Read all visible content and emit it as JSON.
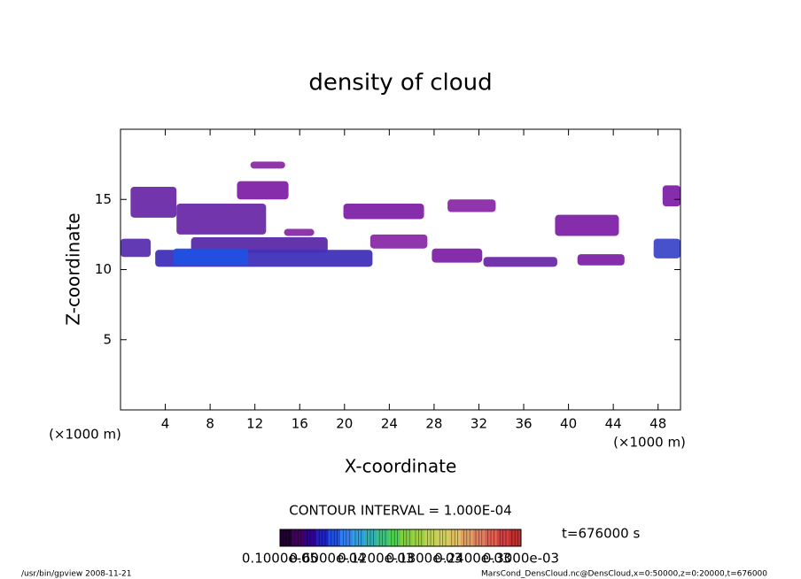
{
  "chart_data": {
    "type": "contour",
    "title": "density of cloud",
    "x_label": "X-coordinate",
    "y_label": "Z-coordinate",
    "x_unit": "(×1000 m)",
    "y_unit": "(×1000 m)",
    "xlim": [
      0,
      50
    ],
    "xticks": [
      4,
      8,
      12,
      16,
      20,
      24,
      28,
      32,
      36,
      40,
      44,
      48
    ],
    "ylim": [
      0,
      20
    ],
    "yticks": [
      5,
      10,
      15
    ],
    "contour_interval": "CONTOUR INTERVAL = 1.000E-04",
    "time_label": "t=676000 s",
    "footer_left": "/usr/bin/gpview   2008-11-21",
    "footer_right": "MarsCond_DensCloud.nc@DensCloud,x=0:50000,z=0:20000,t=676000",
    "colorbar": {
      "colors": [
        "#200030",
        "#400060",
        "#300090",
        "#2020c0",
        "#2050e0",
        "#3080f0",
        "#30a0e0",
        "#30b0b0",
        "#40c080",
        "#50d050",
        "#80d040",
        "#a0d040",
        "#c0d050",
        "#d0d060",
        "#e0c060",
        "#e0a060",
        "#e08060",
        "#e06050",
        "#d04040",
        "#c03030"
      ],
      "ticks": [
        {
          "value": 1e-06,
          "label": "0.1000e-05"
        },
        {
          "value": 6e-05,
          "label": "0.6000e-04"
        },
        {
          "value": 0.00012,
          "label": "0.1200e-03"
        },
        {
          "value": 0.00018,
          "label": "0.1800e-03"
        },
        {
          "value": 0.00024,
          "label": "0.2400e-03"
        },
        {
          "value": 0.0003,
          "label": "0.3000e-03"
        }
      ],
      "lim": [
        1e-06,
        0.0003
      ]
    },
    "patches": [
      {
        "x": [
          11.6,
          14.7
        ],
        "z": [
          17.2,
          17.7
        ],
        "value": 2e-05,
        "color": "#8a2aa8"
      },
      {
        "x": [
          10.4,
          15.0
        ],
        "z": [
          15.0,
          16.3
        ],
        "value": 2e-05,
        "color": "#7e22a6"
      },
      {
        "x": [
          0.9,
          5.0
        ],
        "z": [
          13.7,
          15.9
        ],
        "value": 3e-05,
        "color": "#6a2aa6"
      },
      {
        "x": [
          5.0,
          13.0
        ],
        "z": [
          12.5,
          14.7
        ],
        "value": 3e-05,
        "color": "#6a2aa6"
      },
      {
        "x": [
          0.0,
          2.7
        ],
        "z": [
          10.9,
          12.2
        ],
        "value": 4e-05,
        "color": "#5a30b0"
      },
      {
        "x": [
          6.3,
          18.5
        ],
        "z": [
          11.2,
          12.3
        ],
        "value": 3e-05,
        "color": "#5a2aa8"
      },
      {
        "x": [
          3.1,
          22.5
        ],
        "z": [
          10.2,
          11.4
        ],
        "value": 5e-05,
        "color": "#4030b8"
      },
      {
        "x": [
          4.7,
          11.4
        ],
        "z": [
          10.3,
          11.5
        ],
        "value": 7e-05,
        "color": "#2050e0"
      },
      {
        "x": [
          14.6,
          17.3
        ],
        "z": [
          12.4,
          12.9
        ],
        "value": 2e-05,
        "color": "#8a2aa8"
      },
      {
        "x": [
          19.9,
          27.1
        ],
        "z": [
          13.6,
          14.7
        ],
        "value": 2e-05,
        "color": "#7e22a6"
      },
      {
        "x": [
          22.3,
          27.4
        ],
        "z": [
          11.5,
          12.5
        ],
        "value": 2e-05,
        "color": "#8a2aa8"
      },
      {
        "x": [
          27.8,
          32.3
        ],
        "z": [
          10.5,
          11.5
        ],
        "value": 2e-05,
        "color": "#7e22a6"
      },
      {
        "x": [
          29.2,
          33.5
        ],
        "z": [
          14.1,
          15.0
        ],
        "value": 2e-05,
        "color": "#8a2aa8"
      },
      {
        "x": [
          32.4,
          39.0
        ],
        "z": [
          10.2,
          10.9
        ],
        "value": 3e-05,
        "color": "#6a2aa6"
      },
      {
        "x": [
          38.8,
          44.5
        ],
        "z": [
          12.4,
          13.9
        ],
        "value": 2e-05,
        "color": "#7e22a6"
      },
      {
        "x": [
          40.8,
          45.0
        ],
        "z": [
          10.3,
          11.1
        ],
        "value": 2e-05,
        "color": "#7e22a6"
      },
      {
        "x": [
          48.4,
          50.0
        ],
        "z": [
          14.5,
          16.0
        ],
        "value": 2e-05,
        "color": "#7e22a6"
      },
      {
        "x": [
          47.6,
          50.0
        ],
        "z": [
          10.8,
          12.2
        ],
        "value": 5e-05,
        "color": "#3c48c8"
      }
    ]
  }
}
